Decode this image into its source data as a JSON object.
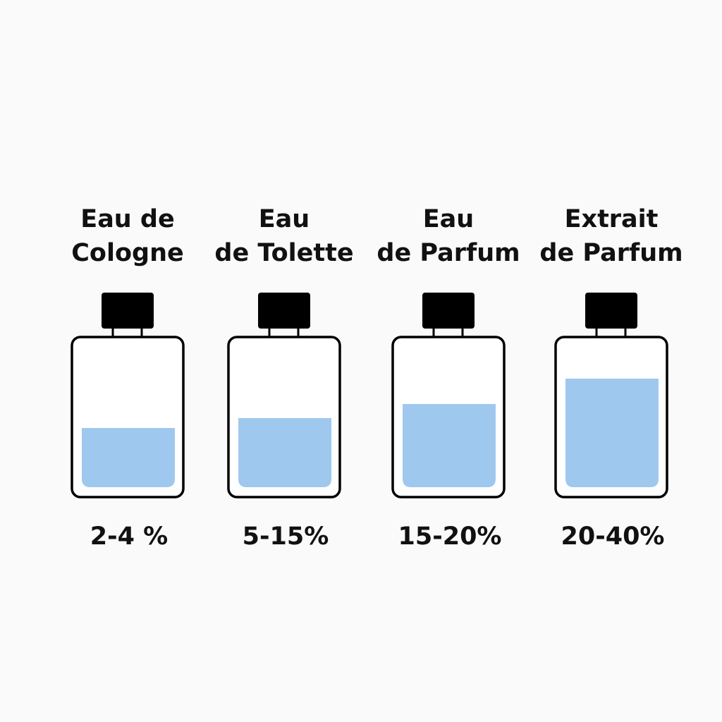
{
  "items": [
    {
      "label": [
        "Eau de",
        "Cologne"
      ],
      "range": "2-4 %"
    },
    {
      "label": [
        "Eau",
        "de Tolette"
      ],
      "range": "5-15%"
    },
    {
      "label": [
        "Eau",
        "de Parfum"
      ],
      "range": "15-20%"
    },
    {
      "label": [
        "Extrait",
        "de Parfum"
      ],
      "range": "20-40%"
    }
  ]
}
